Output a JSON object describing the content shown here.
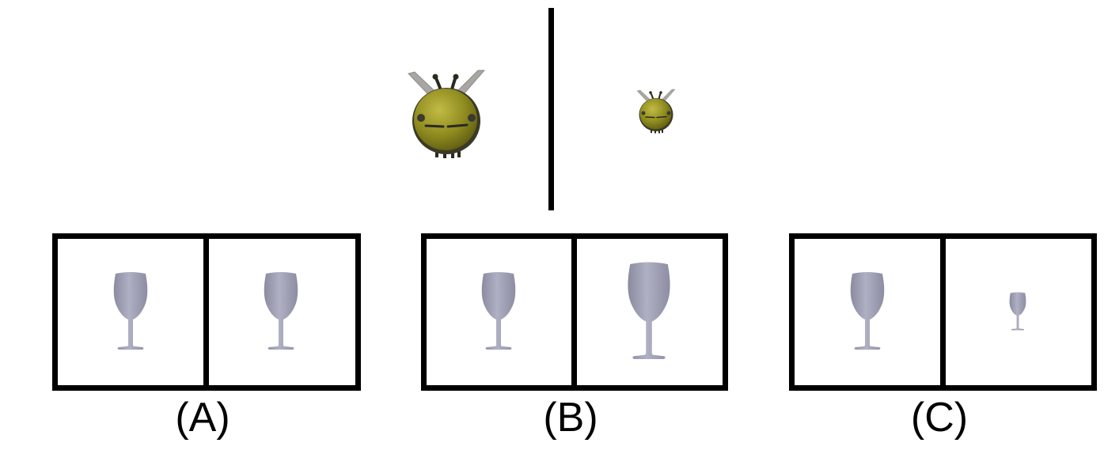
{
  "reference": {
    "left_image": {
      "icon": "bee-icon",
      "relative_size": "large"
    },
    "right_image": {
      "icon": "bee-icon",
      "relative_size": "small"
    }
  },
  "options": [
    {
      "label": "(A)",
      "left_image": {
        "icon": "wine-glass-icon",
        "relative_size": "medium"
      },
      "right_image": {
        "icon": "wine-glass-icon",
        "relative_size": "medium"
      }
    },
    {
      "label": "(B)",
      "left_image": {
        "icon": "wine-glass-icon",
        "relative_size": "medium"
      },
      "right_image": {
        "icon": "wine-glass-icon",
        "relative_size": "large"
      }
    },
    {
      "label": "(C)",
      "left_image": {
        "icon": "wine-glass-icon",
        "relative_size": "medium"
      },
      "right_image": {
        "icon": "wine-glass-icon",
        "relative_size": "small"
      }
    }
  ],
  "colors": {
    "bee_body": "#8e8a1e",
    "bee_body_light": "#b3ad3a",
    "bee_outline": "#2f2f22",
    "bee_wing": "#a8a6a2",
    "glass": "#9a9aae",
    "glass_light": "#b4b4c6",
    "frame": "#000000"
  }
}
